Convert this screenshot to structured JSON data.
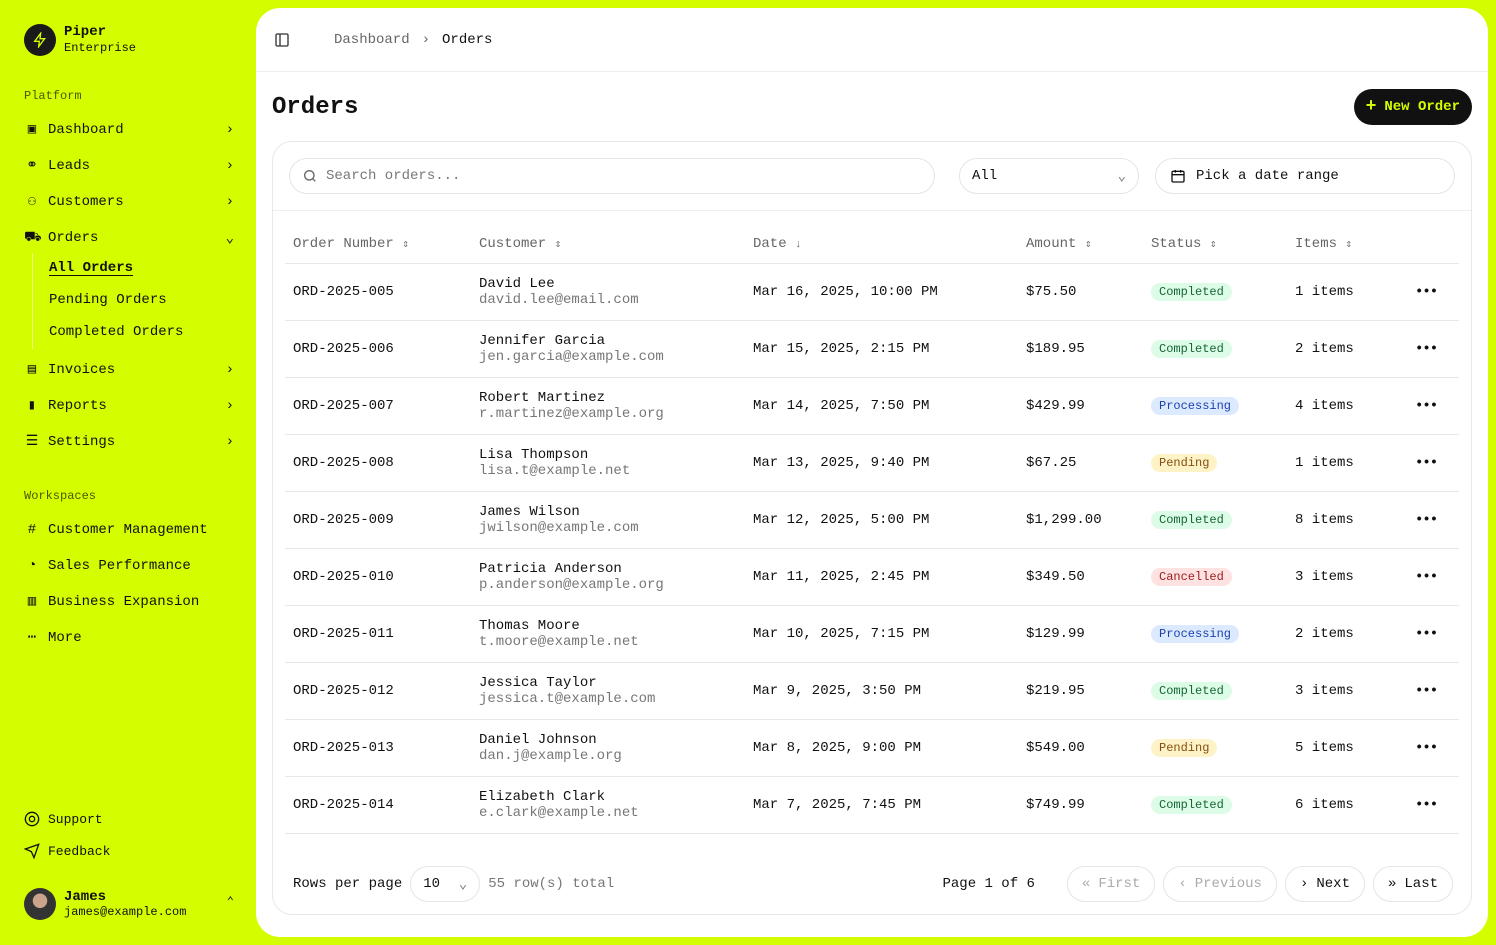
{
  "brand": {
    "name": "Piper",
    "plan": "Enterprise"
  },
  "sidebar": {
    "platform_label": "Platform",
    "items": [
      {
        "label": "Dashboard"
      },
      {
        "label": "Leads"
      },
      {
        "label": "Customers"
      },
      {
        "label": "Orders"
      },
      {
        "label": "Invoices"
      },
      {
        "label": "Reports"
      },
      {
        "label": "Settings"
      }
    ],
    "orders_sub": [
      {
        "label": "All Orders"
      },
      {
        "label": "Pending Orders"
      },
      {
        "label": "Completed Orders"
      }
    ],
    "workspaces_label": "Workspaces",
    "workspaces": [
      {
        "label": "Customer Management"
      },
      {
        "label": "Sales Performance"
      },
      {
        "label": "Business Expansion"
      },
      {
        "label": "More"
      }
    ],
    "support": "Support",
    "feedback": "Feedback",
    "user": {
      "name": "James",
      "email": "james@example.com"
    }
  },
  "breadcrumb": {
    "parent": "Dashboard",
    "current": "Orders"
  },
  "page": {
    "title": "Orders",
    "new_button": "New Order"
  },
  "filters": {
    "search_placeholder": "Search orders...",
    "status": "All",
    "date_placeholder": "Pick a date range"
  },
  "table": {
    "headers": [
      "Order Number",
      "Customer",
      "Date",
      "Amount",
      "Status",
      "Items"
    ],
    "rows": [
      {
        "id": "ORD-2025-005",
        "name": "David Lee",
        "email": "david.lee@email.com",
        "date": "Mar 16, 2025, 10:00 PM",
        "amount": "$75.50",
        "status": "Completed",
        "items": "1 items"
      },
      {
        "id": "ORD-2025-006",
        "name": "Jennifer Garcia",
        "email": "jen.garcia@example.com",
        "date": "Mar 15, 2025, 2:15 PM",
        "amount": "$189.95",
        "status": "Completed",
        "items": "2 items"
      },
      {
        "id": "ORD-2025-007",
        "name": "Robert Martinez",
        "email": "r.martinez@example.org",
        "date": "Mar 14, 2025, 7:50 PM",
        "amount": "$429.99",
        "status": "Processing",
        "items": "4 items"
      },
      {
        "id": "ORD-2025-008",
        "name": "Lisa Thompson",
        "email": "lisa.t@example.net",
        "date": "Mar 13, 2025, 9:40 PM",
        "amount": "$67.25",
        "status": "Pending",
        "items": "1 items"
      },
      {
        "id": "ORD-2025-009",
        "name": "James Wilson",
        "email": "jwilson@example.com",
        "date": "Mar 12, 2025, 5:00 PM",
        "amount": "$1,299.00",
        "status": "Completed",
        "items": "8 items"
      },
      {
        "id": "ORD-2025-010",
        "name": "Patricia Anderson",
        "email": "p.anderson@example.org",
        "date": "Mar 11, 2025, 2:45 PM",
        "amount": "$349.50",
        "status": "Cancelled",
        "items": "3 items"
      },
      {
        "id": "ORD-2025-011",
        "name": "Thomas Moore",
        "email": "t.moore@example.net",
        "date": "Mar 10, 2025, 7:15 PM",
        "amount": "$129.99",
        "status": "Processing",
        "items": "2 items"
      },
      {
        "id": "ORD-2025-012",
        "name": "Jessica Taylor",
        "email": "jessica.t@example.com",
        "date": "Mar 9, 2025, 3:50 PM",
        "amount": "$219.95",
        "status": "Completed",
        "items": "3 items"
      },
      {
        "id": "ORD-2025-013",
        "name": "Daniel Johnson",
        "email": "dan.j@example.org",
        "date": "Mar 8, 2025, 9:00 PM",
        "amount": "$549.00",
        "status": "Pending",
        "items": "5 items"
      },
      {
        "id": "ORD-2025-014",
        "name": "Elizabeth Clark",
        "email": "e.clark@example.net",
        "date": "Mar 7, 2025, 7:45 PM",
        "amount": "$749.99",
        "status": "Completed",
        "items": "6 items"
      }
    ]
  },
  "status_colors": {
    "Completed": {
      "bg": "#dcfce7",
      "fg": "#166534"
    },
    "Processing": {
      "bg": "#dbeafe",
      "fg": "#1e40af"
    },
    "Pending": {
      "bg": "#fef3c7",
      "fg": "#854d0e"
    },
    "Cancelled": {
      "bg": "#fee2e2",
      "fg": "#991b1b"
    }
  },
  "pagination": {
    "rows_per_page_label": "Rows per page",
    "rows_per_page": "10",
    "total": "55 row(s) total",
    "page_info": "Page 1 of 6",
    "first": "First",
    "previous": "Previous",
    "next": "Next",
    "last": "Last"
  },
  "colors": {
    "accent": "#d4fd00"
  }
}
